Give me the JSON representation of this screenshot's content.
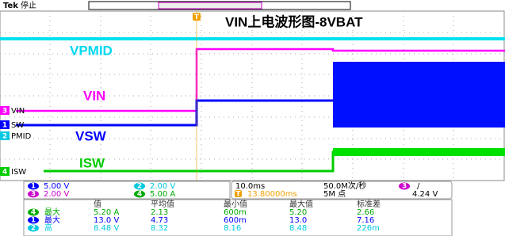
{
  "header": {
    "brand": "Tek",
    "status": "停止"
  },
  "title": "VIN上电波形图-8VBAT",
  "trace_labels": [
    "VPMID",
    "VIN",
    "VSW",
    "ISW"
  ],
  "channel_tags": [
    {
      "num": "3",
      "label": "VIN"
    },
    {
      "num": "1",
      "label": "SW"
    },
    {
      "num": "2",
      "label": "PMID"
    },
    {
      "num": "4",
      "label": "ISW"
    }
  ],
  "trigger_marker": "T",
  "channel_settings": [
    {
      "num": "1",
      "scale": "5.00 V"
    },
    {
      "num": "2",
      "scale": "2.00 V"
    },
    {
      "num": "3",
      "scale": "2.00 V"
    },
    {
      "num": "4",
      "scale": "5.00 A"
    }
  ],
  "timebase": {
    "scale": "10.0ms",
    "sample_rate": "50.0M次/秒",
    "position": "13.80000ms",
    "record": "5M 点"
  },
  "trigger": {
    "source": "3",
    "slope": "/",
    "level": "4.24 V"
  },
  "measurements": {
    "headers": [
      "值",
      "平均值",
      "最小值",
      "最大值",
      "标准差"
    ],
    "rows": [
      {
        "num": "4",
        "type": "最大",
        "cells": [
          "5.20 A",
          "2.13",
          "600m",
          "5.20",
          "2.66"
        ]
      },
      {
        "num": "1",
        "type": "最大",
        "cells": [
          "13.0 V",
          "4.73",
          "600m",
          "13.0",
          "7.16"
        ]
      },
      {
        "num": "2",
        "type": "高",
        "cells": [
          "8.48 V",
          "8.32",
          "8.16",
          "8.48",
          "226m"
        ]
      }
    ]
  }
}
